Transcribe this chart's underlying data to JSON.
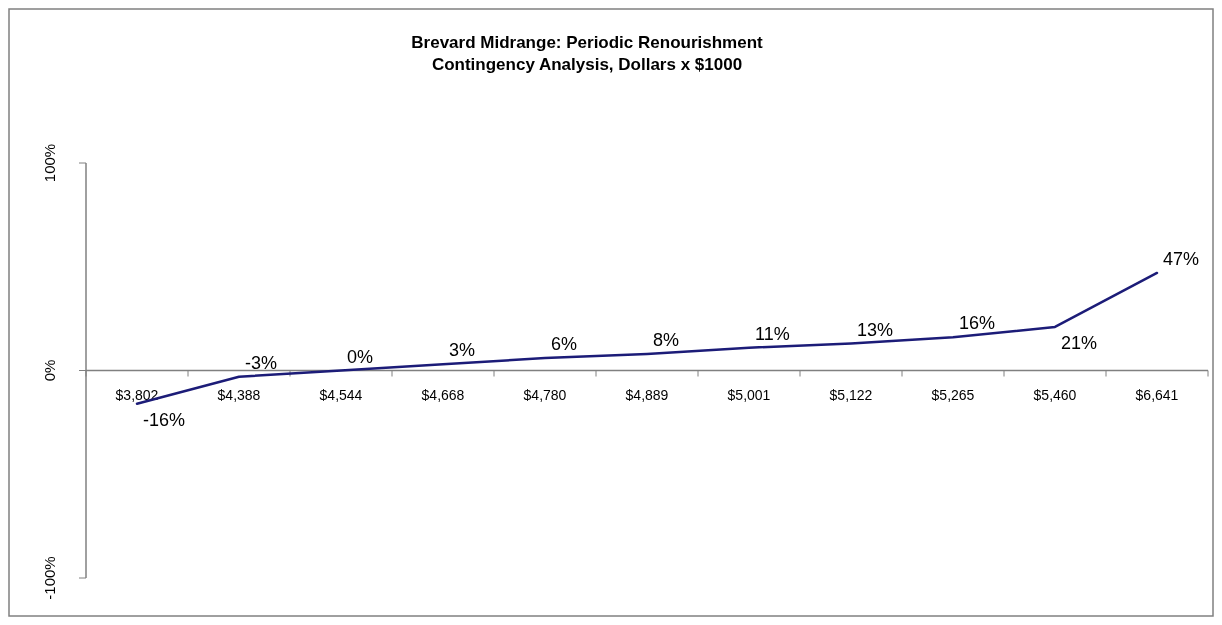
{
  "chart_data": {
    "type": "line",
    "title": "Brevard Midrange: Periodic Renourishment\nContingency Analysis, Dollars x $1000",
    "categories": [
      "$3,802",
      "$4,388",
      "$4,544",
      "$4,668",
      "$4,780",
      "$4,889",
      "$5,001",
      "$5,122",
      "$5,265",
      "$5,460",
      "$6,641"
    ],
    "series": [
      {
        "color": "#1c1c78",
        "values": [
          -16,
          -3,
          0,
          3,
          6,
          8,
          11,
          13,
          16,
          21,
          47
        ],
        "value_labels": [
          "-16%",
          "-3%",
          "0%",
          "3%",
          "6%",
          "8%",
          "11%",
          "13%",
          "16%",
          "21%",
          "47%"
        ]
      }
    ],
    "ylim": [
      -100,
      100
    ],
    "yticks": [
      {
        "value": -100,
        "label": "-100%"
      },
      {
        "value": 0,
        "label": "0%"
      },
      {
        "value": 100,
        "label": "100%"
      }
    ],
    "marker": "none",
    "line_style": "solid"
  }
}
